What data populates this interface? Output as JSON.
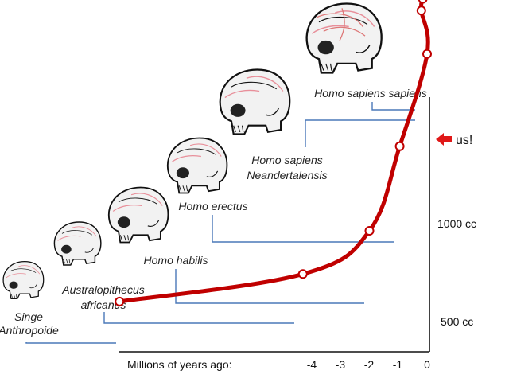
{
  "chart_data": {
    "type": "line",
    "x_axis_label": "Millions of years ago:",
    "x_ticks": [
      "-4",
      "-3",
      "-2",
      "-1",
      "0"
    ],
    "y_ticks": [
      "1000 cc",
      "500 cc"
    ],
    "current_marker": "us!",
    "line_color": "#c00000",
    "connector_color": "#4a78b8",
    "species": [
      {
        "key": "singe",
        "lines": [
          "Singe",
          "Anthropoide"
        ],
        "x": -10.5,
        "y": 300
      },
      {
        "key": "australopithecus",
        "lines": [
          "Australopithecus",
          "africanus"
        ],
        "x": -4.3,
        "y": 440
      },
      {
        "key": "habilis",
        "lines": [
          "Homo habilis"
        ],
        "x": -2.0,
        "y": 660
      },
      {
        "key": "erectus",
        "lines": [
          "Homo erectus"
        ],
        "x": -0.95,
        "y": 1090
      },
      {
        "key": "neandertal",
        "lines": [
          "Homo sapiens",
          "Neandertalensis"
        ],
        "x": -0.2,
        "y": 1780
      },
      {
        "key": "sapiens",
        "lines": [
          "Homo sapiens sapiens"
        ],
        "x": -0.15,
        "y": 1840
      },
      {
        "key": "us",
        "lines": [],
        "x": 0,
        "y": 1560
      }
    ]
  }
}
